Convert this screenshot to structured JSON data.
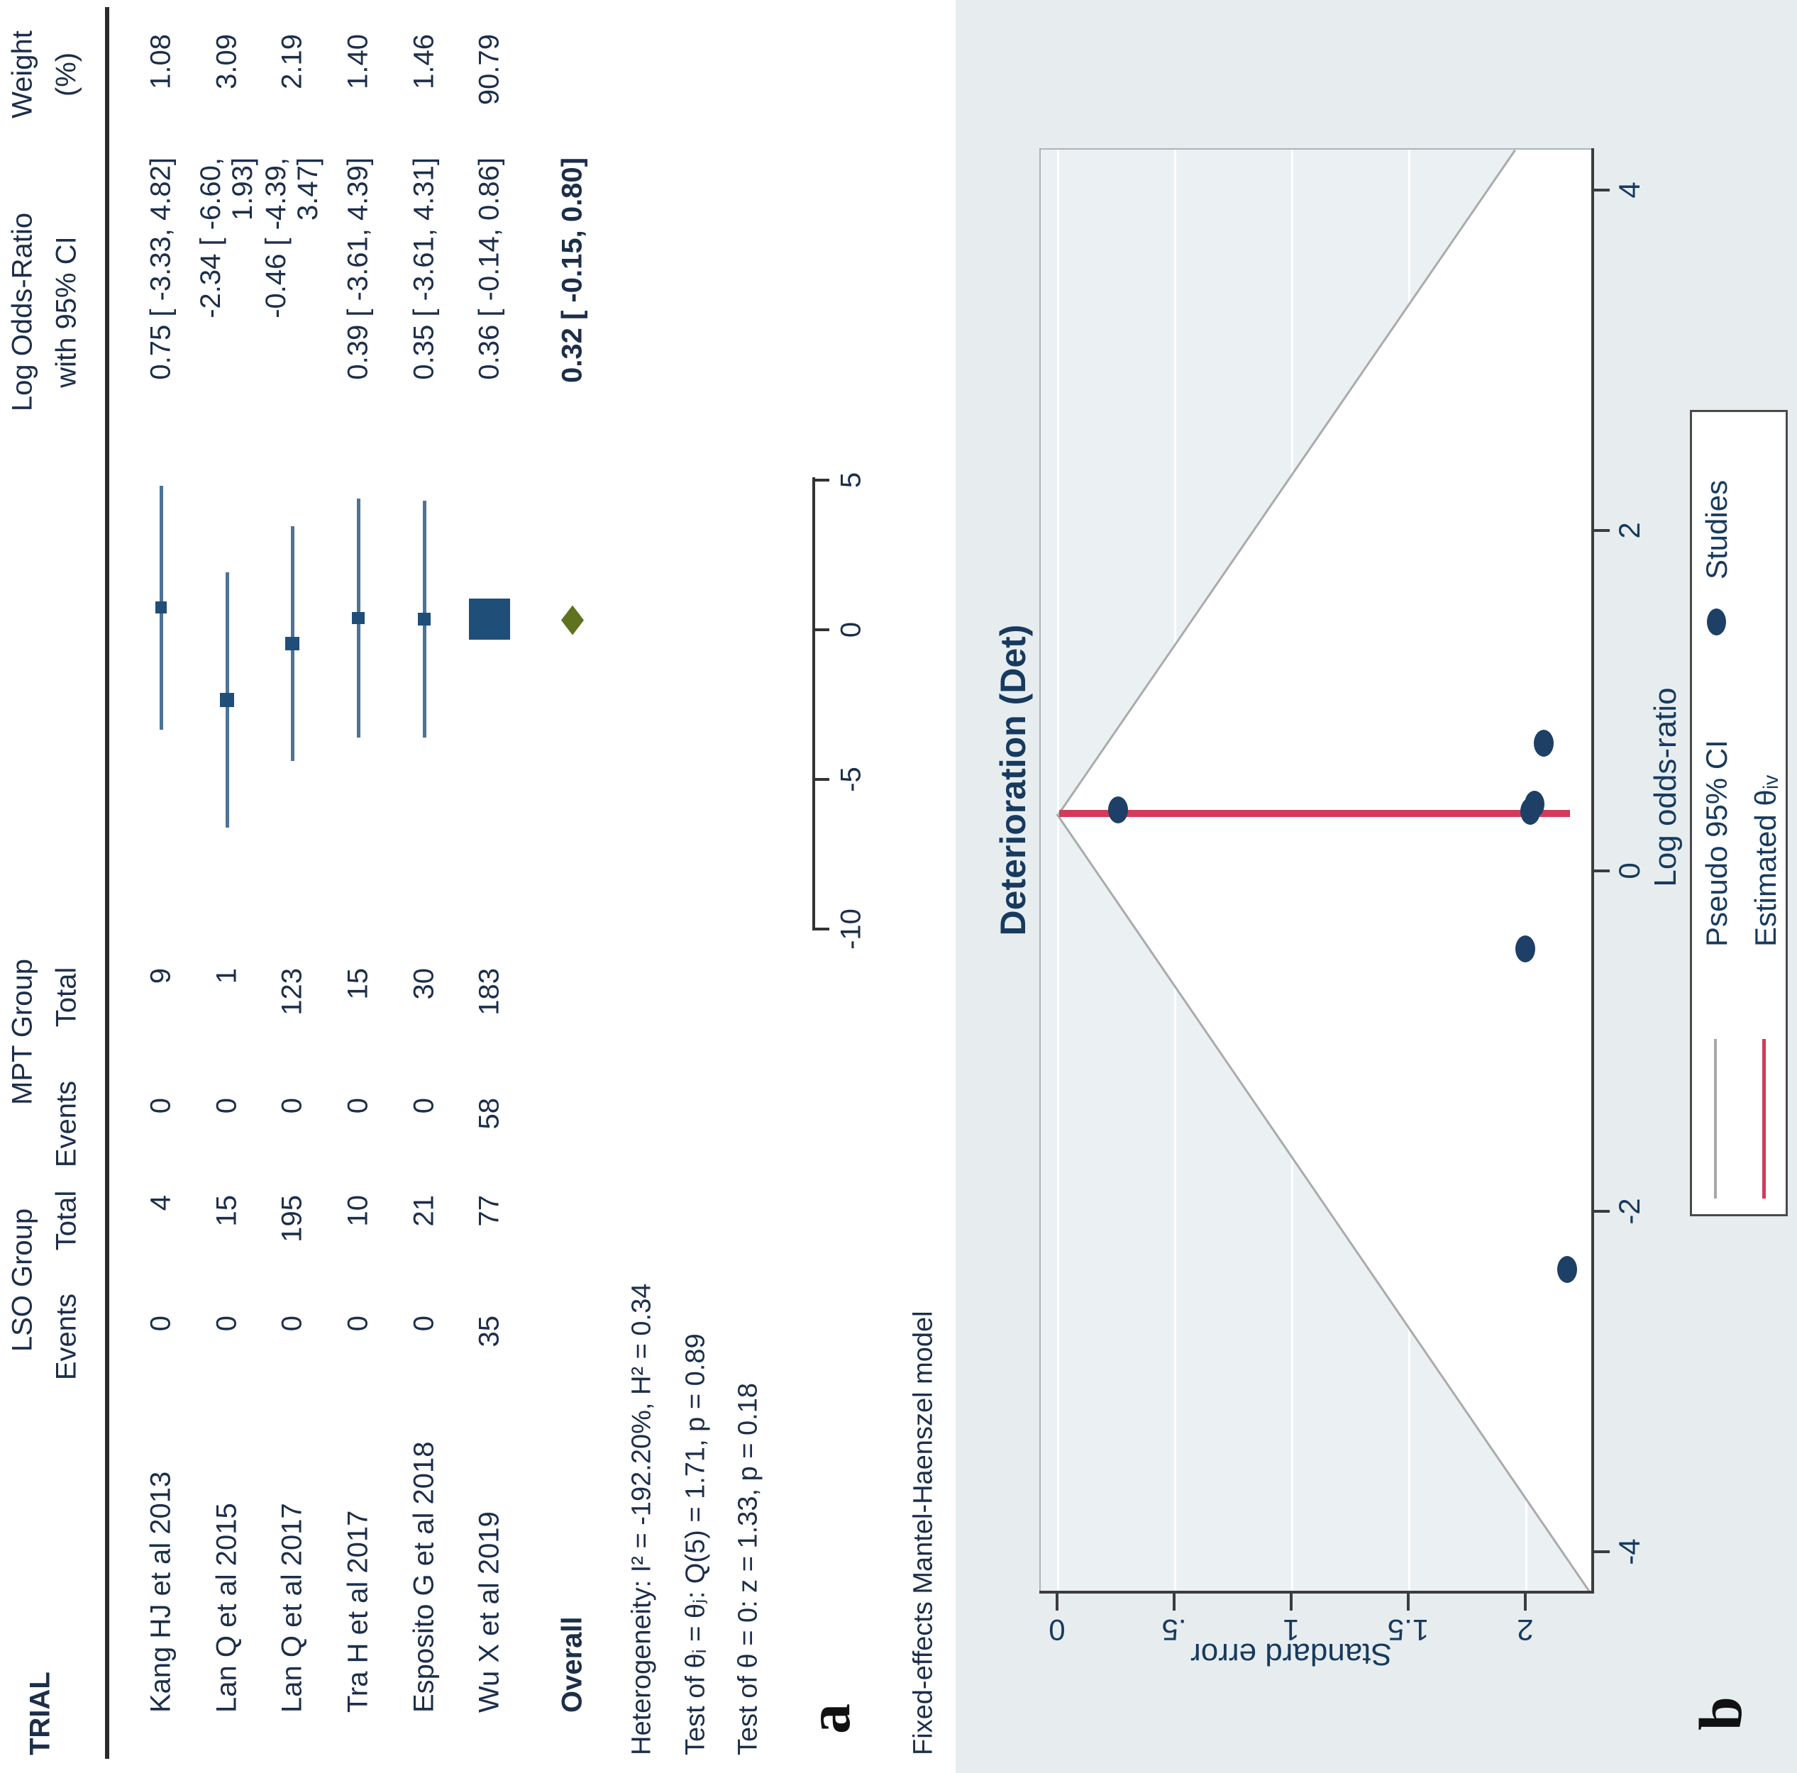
{
  "panel_a": {
    "label": "a",
    "headers": {
      "trial": "TRIAL",
      "lso_group": "LSO Group",
      "mpt_group": "MPT Group",
      "events": "Events",
      "total": "Total",
      "logor_line1": "Log Odds-Ratio",
      "logor_line2": "with 95% CI",
      "weight_line1": "Weight",
      "weight_line2": "(%)"
    },
    "overall_label": "Overall",
    "stats": [
      "Heterogeneity: I² = -192.20%, H² = 0.34",
      "Test of θᵢ = θⱼ: Q(5) = 1.71, p = 0.89",
      "Test of θ = 0: z = 1.33, p = 0.18"
    ],
    "model_note": "Fixed-effects Mantel-Haenszel model"
  },
  "panel_b": {
    "label": "b",
    "title": "Deterioration (Det)",
    "xlabel": "Log odds-ratio",
    "ylabel": "Standard error",
    "legend": {
      "pseudo_ci": "Pseudo 95% CI",
      "studies": "Studies",
      "estimated": "Estimated θᵢᵥ"
    }
  },
  "chart_data": [
    {
      "type": "forest",
      "effect_measure": "Log Odds-Ratio",
      "xticks": [
        -10,
        -5,
        0,
        5
      ],
      "studies": [
        {
          "label": "Kang HJ et al 2013",
          "lso_events": "0",
          "lso_total": "4",
          "mpt_events": "0",
          "mpt_total": "9",
          "est": 0.75,
          "lo": -3.33,
          "hi": 4.82,
          "ci_text": "0.75 [ -3.33,  4.82]",
          "weight": "1.08"
        },
        {
          "label": "Lan Q et al 2015",
          "lso_events": "0",
          "lso_total": "15",
          "mpt_events": "0",
          "mpt_total": "1",
          "est": -2.34,
          "lo": -6.6,
          "hi": 1.93,
          "ci_text": "-2.34 [ -6.60,  1.93]",
          "weight": "3.09"
        },
        {
          "label": "Lan Q et al 2017",
          "lso_events": "0",
          "lso_total": "195",
          "mpt_events": "0",
          "mpt_total": "123",
          "est": -0.46,
          "lo": -4.39,
          "hi": 3.47,
          "ci_text": "-0.46 [ -4.39,  3.47]",
          "weight": "2.19"
        },
        {
          "label": "Tra H et al 2017",
          "lso_events": "0",
          "lso_total": "10",
          "mpt_events": "0",
          "mpt_total": "15",
          "est": 0.39,
          "lo": -3.61,
          "hi": 4.39,
          "ci_text": "0.39 [ -3.61,  4.39]",
          "weight": "1.40"
        },
        {
          "label": "Esposito G et al 2018",
          "lso_events": "0",
          "lso_total": "21",
          "mpt_events": "0",
          "mpt_total": "30",
          "est": 0.35,
          "lo": -3.61,
          "hi": 4.31,
          "ci_text": "0.35 [ -3.61,  4.31]",
          "weight": "1.46"
        },
        {
          "label": "Wu X et al 2019",
          "lso_events": "35",
          "lso_total": "77",
          "mpt_events": "58",
          "mpt_total": "183",
          "est": 0.36,
          "lo": -0.14,
          "hi": 0.86,
          "ci_text": "0.36 [ -0.14,  0.86]",
          "weight": "90.79"
        }
      ],
      "overall": {
        "est": 0.32,
        "lo": -0.15,
        "hi": 0.8,
        "ci_text": "0.32 [ -0.15,  0.80]"
      }
    },
    {
      "type": "scatter",
      "subtype": "funnel",
      "title": "Deterioration (Det)",
      "xlabel": "Log odds-ratio",
      "ylabel": "Standard error",
      "xticks": [
        -4,
        -2,
        0,
        2,
        4
      ],
      "yticks": [
        "0",
        ".5",
        "1",
        "1.5",
        "2"
      ],
      "ytick_values": [
        0,
        0.5,
        1,
        1.5,
        2
      ],
      "estimate": 0.34,
      "points": [
        {
          "study": "Wu X et al 2019",
          "log_or": 0.36,
          "se": 0.26
        },
        {
          "study": "Kang HJ et al 2013",
          "log_or": 0.75,
          "se": 2.08
        },
        {
          "study": "Tra H et al 2017",
          "log_or": 0.39,
          "se": 2.04
        },
        {
          "study": "Esposito G et al 2018",
          "log_or": 0.35,
          "se": 2.02
        },
        {
          "study": "Lan Q et al 2017",
          "log_or": -0.46,
          "se": 2.0
        },
        {
          "study": "Lan Q et al 2015",
          "log_or": -2.34,
          "se": 2.18
        }
      ],
      "colors": {
        "dot": "#1e3f66",
        "estimate_line": "#d23b5a",
        "pseudo_ci_line": "#ababab",
        "plot_bg": "#ebf1f3",
        "outer_bg": "#e7edef"
      }
    }
  ]
}
